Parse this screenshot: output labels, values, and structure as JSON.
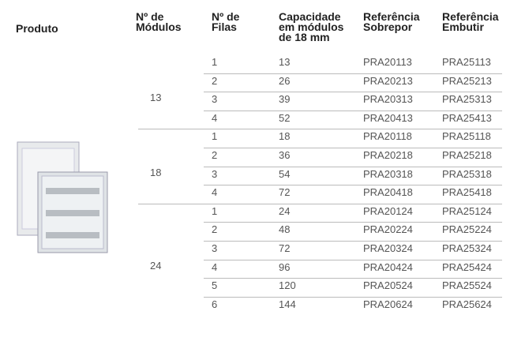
{
  "table": {
    "headers": [
      [
        "Produto"
      ],
      [
        "Nº de",
        "Módulos"
      ],
      [
        "Nº de",
        "Filas"
      ],
      [
        "Capacidade",
        "em módulos",
        "de 18 mm"
      ],
      [
        "Referência",
        "Sobrepor"
      ],
      [
        "Referência",
        "Embutir"
      ]
    ],
    "groups": [
      {
        "modules": "13",
        "rows": [
          [
            "1",
            "13",
            "PRA20113",
            "PRA25113"
          ],
          [
            "2",
            "26",
            "PRA20213",
            "PRA25213"
          ],
          [
            "3",
            "39",
            "PRA20313",
            "PRA25313"
          ],
          [
            "4",
            "52",
            "PRA20413",
            "PRA25413"
          ]
        ]
      },
      {
        "modules": "18",
        "rows": [
          [
            "1",
            "18",
            "PRA20118",
            "PRA25118"
          ],
          [
            "2",
            "36",
            "PRA20218",
            "PRA25218"
          ],
          [
            "3",
            "54",
            "PRA20318",
            "PRA25318"
          ],
          [
            "4",
            "72",
            "PRA20418",
            "PRA25418"
          ]
        ]
      },
      {
        "modules": "24",
        "rows": [
          [
            "1",
            "24",
            "PRA20124",
            "PRA25124"
          ],
          [
            "2",
            "48",
            "PRA20224",
            "PRA25224"
          ],
          [
            "3",
            "72",
            "PRA20324",
            "PRA25324"
          ],
          [
            "4",
            "96",
            "PRA20424",
            "PRA25424"
          ],
          [
            "5",
            "120",
            "PRA20524",
            "PRA25524"
          ],
          [
            "6",
            "144",
            "PRA20624",
            "PRA25624"
          ]
        ]
      }
    ]
  }
}
